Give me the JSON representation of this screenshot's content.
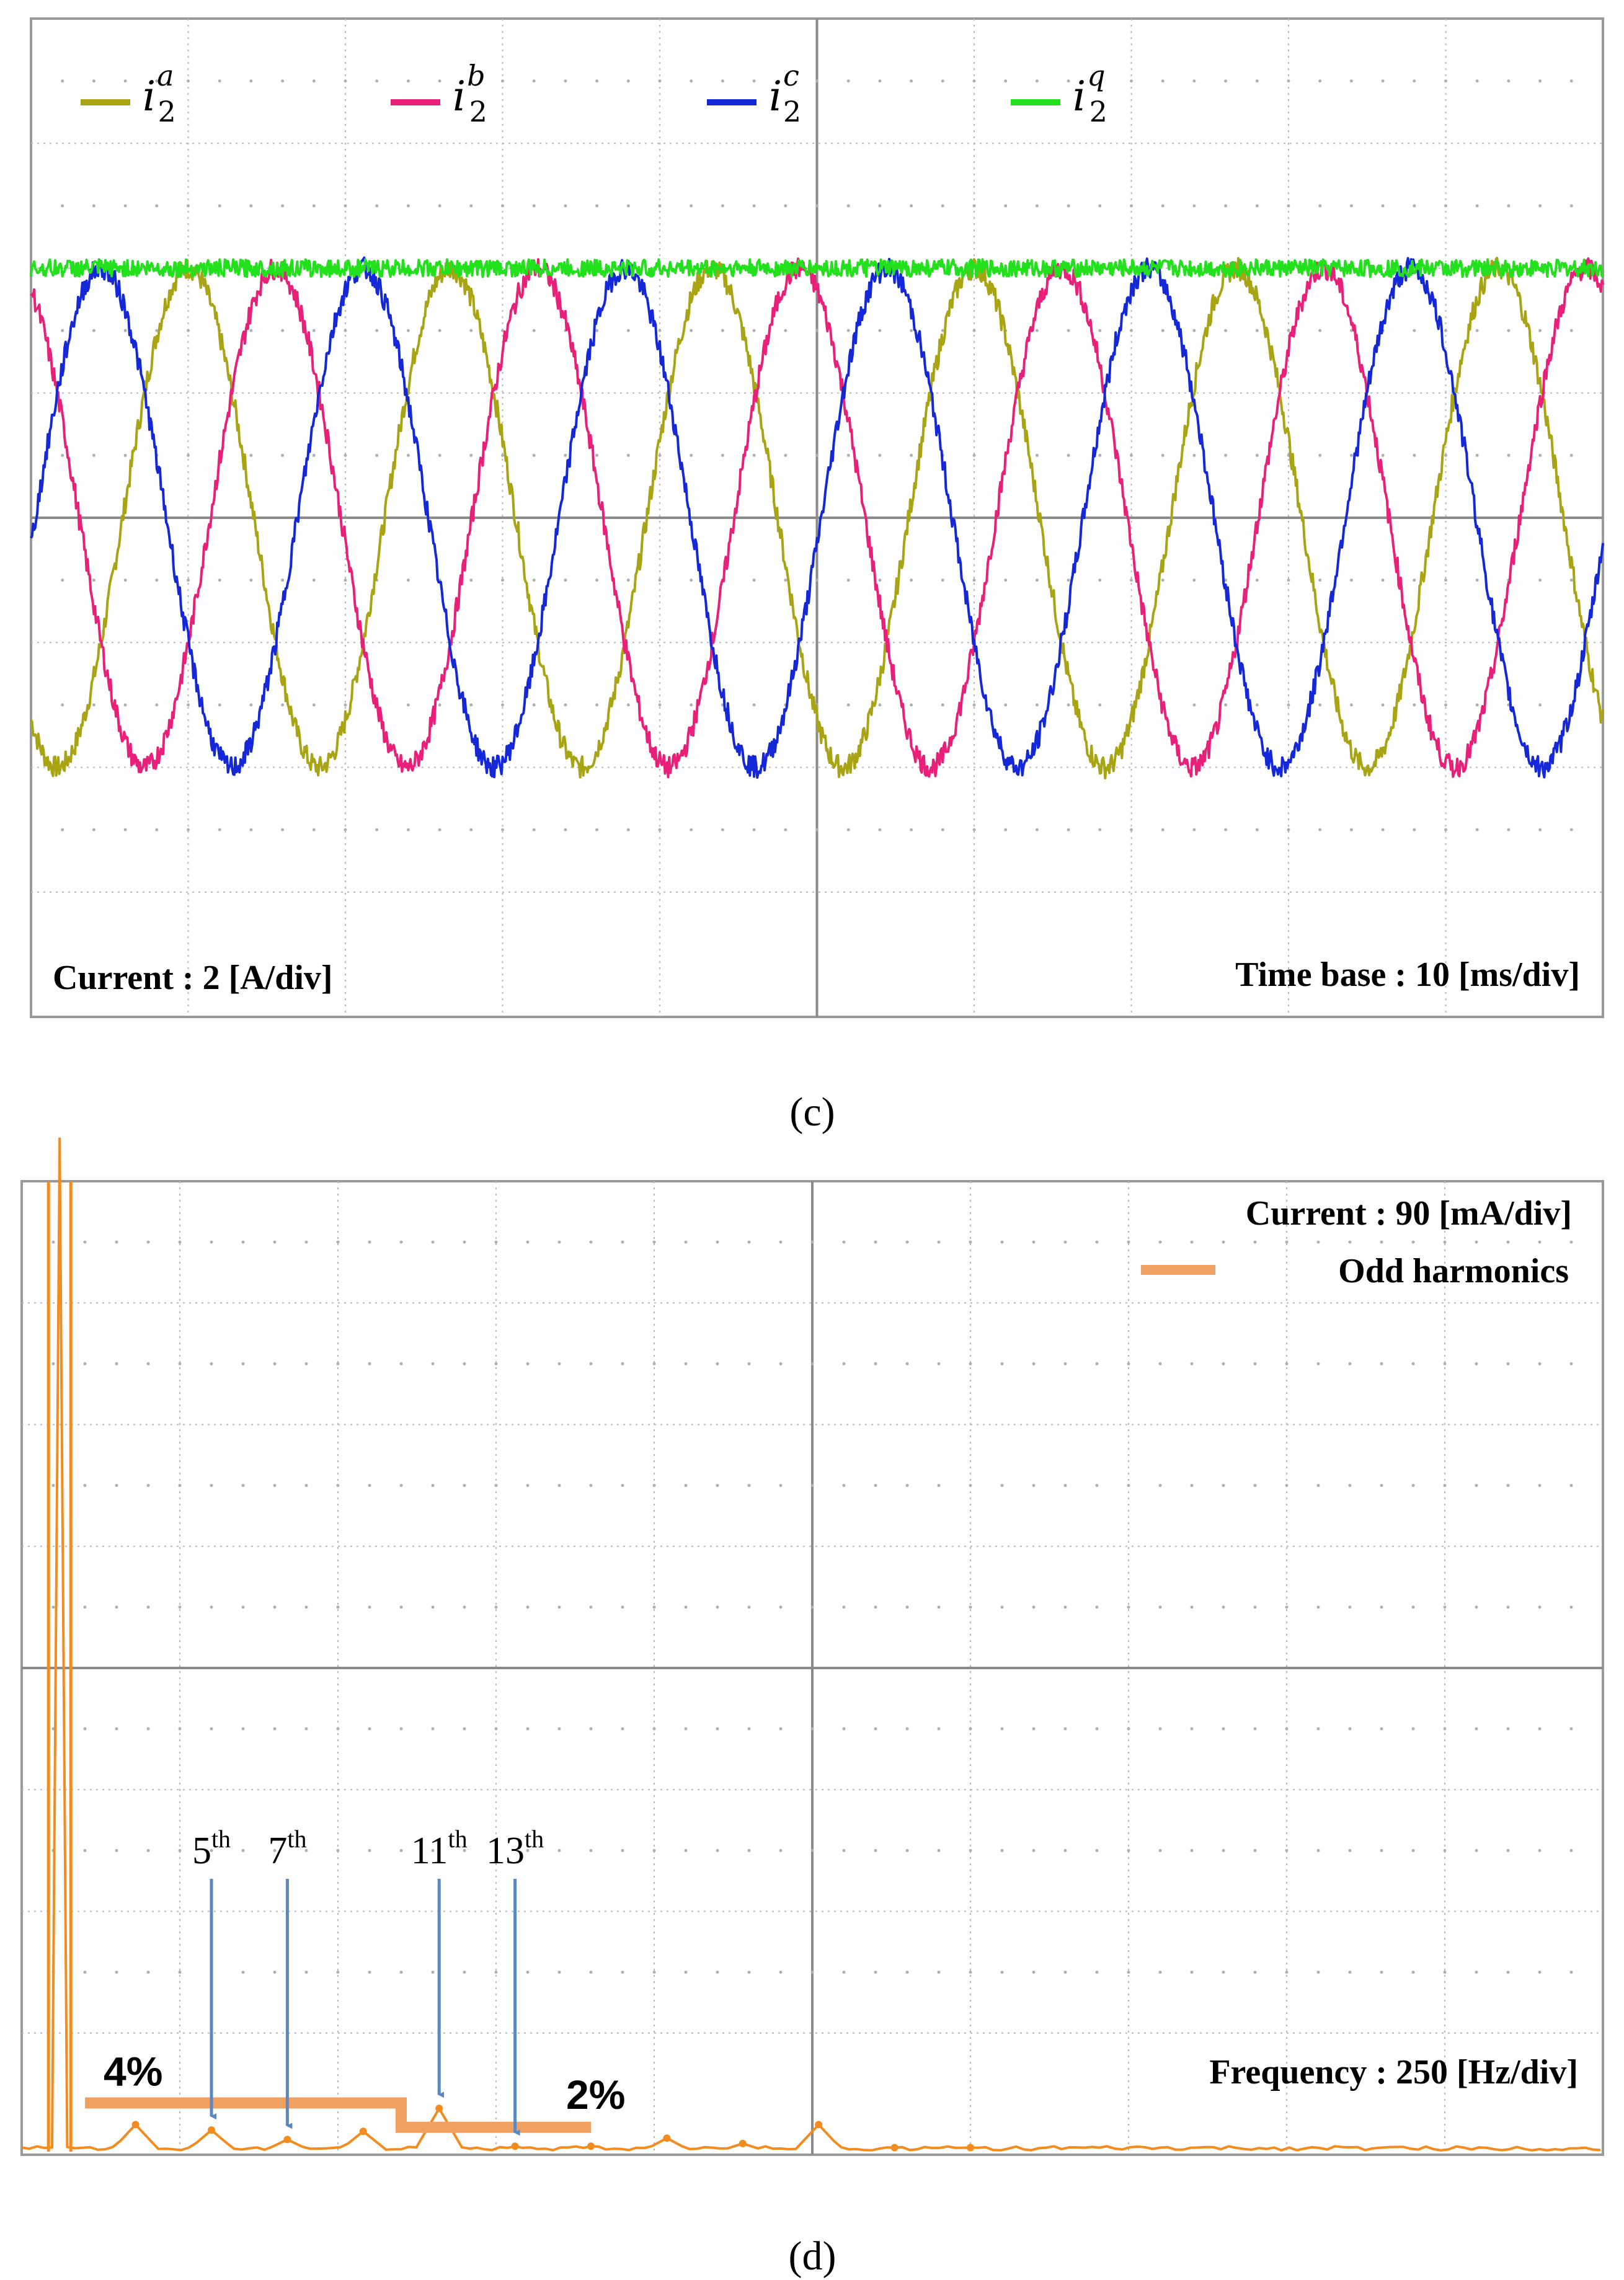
{
  "colors": {
    "ia": "#a8a414",
    "ib": "#e8207a",
    "ic": "#1428d8",
    "iq": "#22e01c",
    "spectrum": "#f28c1e",
    "highlight": "#f0a060",
    "arrow": "#5a88c0",
    "grid": "#b8b8b8",
    "text": "#000000"
  },
  "panel_c": {
    "caption": "(c)",
    "legend": [
      {
        "symbol": "i",
        "sub": "2",
        "sup": "a",
        "color_key": "ia"
      },
      {
        "symbol": "i",
        "sub": "2",
        "sup": "b",
        "color_key": "ib"
      },
      {
        "symbol": "i",
        "sub": "2",
        "sup": "c",
        "color_key": "ic"
      },
      {
        "symbol": "i",
        "sub": "2",
        "sup": "q",
        "color_key": "iq"
      }
    ],
    "scale_left": "Current : 2 [A/div]",
    "scale_right": "Time base : 10 [ms/div]"
  },
  "panel_d": {
    "caption": "(d)",
    "scale_top": "Current : 90 [mA/div]",
    "legend_label": "Odd harmonics",
    "scale_bottom": "Frequency : 250 [Hz/div]",
    "limit_labels": {
      "high": "4%",
      "low": "2%"
    },
    "harmonic_labels": [
      {
        "num": "5",
        "suffix": "th"
      },
      {
        "num": "7",
        "suffix": "th"
      },
      {
        "num": "11",
        "suffix": "th"
      },
      {
        "num": "13",
        "suffix": "th"
      }
    ]
  },
  "chart_data": [
    {
      "type": "line",
      "title": "",
      "xlabel": "Time base : 10 [ms/div]",
      "ylabel": "Current : 2 [A/div]",
      "x_unit": "ms",
      "y_unit": "A",
      "xlim": [
        0,
        100
      ],
      "ylim": [
        -8,
        8
      ],
      "grid": true,
      "legend_position": "top",
      "frequency_hz": 60,
      "series": [
        {
          "name": "i2a",
          "kind": "sine",
          "amplitude": 4,
          "phase_deg": 0
        },
        {
          "name": "i2b",
          "kind": "sine",
          "amplitude": 4,
          "phase_deg": -120
        },
        {
          "name": "i2c",
          "kind": "sine",
          "amplitude": 4,
          "phase_deg": 120
        },
        {
          "name": "i2q",
          "kind": "dc",
          "value": 4
        }
      ]
    },
    {
      "type": "line",
      "title": "",
      "xlabel": "Frequency : 250 [Hz/div]",
      "ylabel": "Current : 90 [mA/div]",
      "x_unit": "Hz",
      "y_unit": "mA",
      "xlim": [
        0,
        2500
      ],
      "ylim": [
        0,
        720
      ],
      "grid": true,
      "series": [
        {
          "name": "Odd harmonics",
          "x": [
            60,
            180,
            300,
            420,
            540,
            660,
            780,
            900,
            1020,
            1140,
            1260,
            1380,
            1500
          ],
          "y": [
            720,
            20,
            16,
            9,
            15,
            32,
            4,
            4,
            10,
            6,
            20,
            3,
            3
          ]
        }
      ],
      "limits": [
        {
          "label": "4%",
          "y": 36,
          "x_range": [
            100,
            600
          ]
        },
        {
          "label": "2%",
          "y": 18,
          "x_range": [
            600,
            900
          ]
        }
      ]
    }
  ]
}
